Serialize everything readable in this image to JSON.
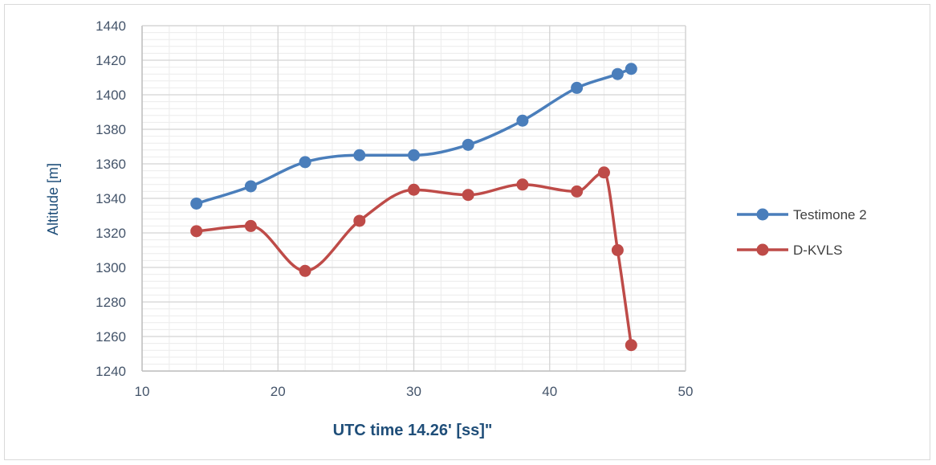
{
  "chart_data": {
    "type": "line",
    "title": "",
    "xlabel": "UTC time 14.26' [ss]\"",
    "ylabel": "Altitude [m]",
    "xlim": [
      10,
      50
    ],
    "ylim": [
      1240,
      1440
    ],
    "x_major_step": 10,
    "x_minor_step": 2,
    "y_major_step": 20,
    "y_minor_step": 4,
    "x_ticks": [
      "10",
      "20",
      "30",
      "40",
      "50"
    ],
    "y_ticks": [
      "1240",
      "1260",
      "1280",
      "1300",
      "1320",
      "1340",
      "1360",
      "1380",
      "1400",
      "1420",
      "1440"
    ],
    "grid": true,
    "legend_position": "right",
    "smooth": true,
    "series": [
      {
        "name": "Testimone 2",
        "color": "#4a7ebb",
        "points": [
          [
            14,
            1337
          ],
          [
            18,
            1347
          ],
          [
            22,
            1361
          ],
          [
            26,
            1365
          ],
          [
            30,
            1365
          ],
          [
            34,
            1371
          ],
          [
            38,
            1385
          ],
          [
            42,
            1404
          ],
          [
            45,
            1412
          ],
          [
            46,
            1415
          ]
        ]
      },
      {
        "name": "D-KVLS",
        "color": "#be4b48",
        "points": [
          [
            14,
            1321
          ],
          [
            18,
            1324
          ],
          [
            22,
            1298
          ],
          [
            26,
            1327
          ],
          [
            30,
            1345
          ],
          [
            34,
            1342
          ],
          [
            38,
            1348
          ],
          [
            42,
            1344
          ],
          [
            44,
            1355
          ],
          [
            45,
            1310
          ],
          [
            46,
            1255
          ]
        ]
      }
    ]
  }
}
